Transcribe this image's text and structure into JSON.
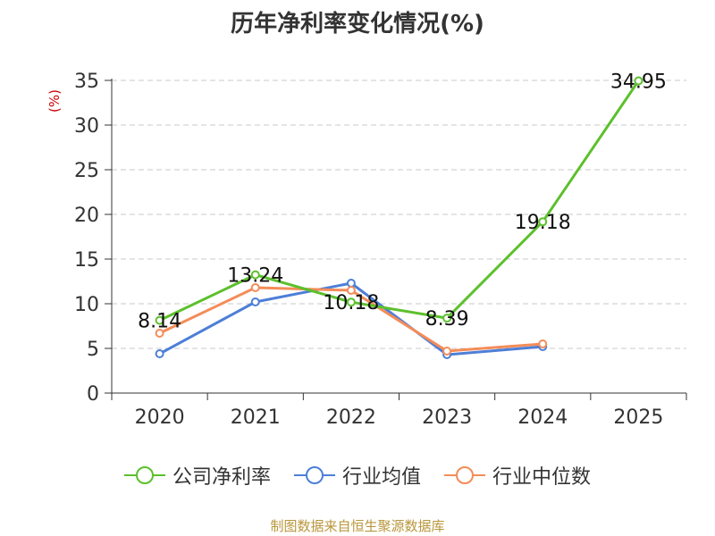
{
  "chart_data": {
    "type": "line",
    "title": "历年净利率变化情况(%)",
    "ylabel": "(%)",
    "xlabel": "",
    "categories": [
      "2020",
      "2021",
      "2022",
      "2023",
      "2024",
      "2025"
    ],
    "ylim": [
      0,
      35
    ],
    "yticks": [
      0,
      5,
      10,
      15,
      20,
      25,
      30,
      35
    ],
    "grid": true,
    "legend_position": "bottom",
    "series": [
      {
        "name": "公司净利率",
        "color": "#5cc02c",
        "values": [
          8.14,
          13.24,
          10.18,
          8.39,
          19.18,
          34.95
        ],
        "data_labels": [
          "8.14",
          "13.24",
          "10.18",
          "8.39",
          "19.18",
          "34.95"
        ]
      },
      {
        "name": "行业均值",
        "color": "#4d7fd7",
        "values": [
          4.4,
          10.2,
          12.3,
          4.3,
          5.2,
          null
        ]
      },
      {
        "name": "行业中位数",
        "color": "#f48c58",
        "values": [
          6.7,
          11.8,
          11.5,
          4.7,
          5.5,
          null
        ]
      }
    ]
  },
  "source": "制图数据来自恒生聚源数据库"
}
